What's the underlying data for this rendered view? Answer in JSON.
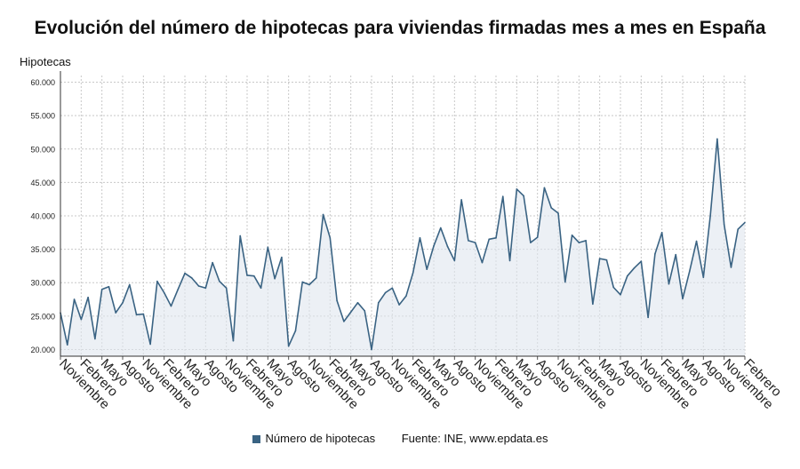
{
  "chart_data": {
    "type": "area",
    "title": "Evolución del número de hipotecas para viviendas firmadas mes a mes en España",
    "ylabel": "Hipotecas",
    "ylim": [
      19000,
      61000
    ],
    "yticks": [
      20000,
      25000,
      30000,
      35000,
      40000,
      45000,
      50000,
      55000,
      60000
    ],
    "ytick_labels": [
      "20.000",
      "25.000",
      "30.000",
      "35.000",
      "40.000",
      "45.000",
      "50.000",
      "55.000",
      "60.000"
    ],
    "x_tick_labels": [
      "Noviembre",
      "Febrero",
      "Mayo",
      "Agosto",
      "Noviembre",
      "Febrero",
      "Mayo",
      "Agosto",
      "Noviembre",
      "Febrero",
      "Mayo",
      "Agosto",
      "Noviembre",
      "Febrero",
      "Mayo",
      "Agosto",
      "Noviembre",
      "Febrero",
      "Mayo",
      "Agosto",
      "Noviembre",
      "Febrero",
      "Mayo",
      "Agosto",
      "Noviembre",
      "Febrero",
      "Mayo",
      "Agosto",
      "Noviembre",
      "Febrero",
      "Mayo",
      "Agosto",
      "Noviembre",
      "Febrero"
    ],
    "x_tick_every_months": 3,
    "grid": true,
    "legend_position": "bottom",
    "series": [
      {
        "name": "Número de hipotecas",
        "color": "#3a6383",
        "values": [
          25500,
          20700,
          27500,
          24500,
          27800,
          21600,
          29000,
          29400,
          25500,
          27000,
          29700,
          25200,
          25300,
          20800,
          30200,
          28500,
          26500,
          29000,
          31400,
          30700,
          29500,
          29200,
          33000,
          30200,
          29200,
          21300,
          37000,
          31100,
          31000,
          29200,
          35300,
          30600,
          33800,
          20500,
          22800,
          30100,
          29700,
          30700,
          40200,
          36700,
          27300,
          24200,
          25600,
          27000,
          25800,
          20000,
          27000,
          28500,
          29200,
          26700,
          28000,
          31500,
          36700,
          32000,
          35500,
          38200,
          35400,
          33300,
          42400,
          36300,
          36000,
          33000,
          36500,
          36700,
          42900,
          33300,
          44000,
          43000,
          36000,
          36800,
          44200,
          41200,
          40400,
          30100,
          37100,
          36000,
          36300,
          26800,
          33600,
          33400,
          29300,
          28200,
          31000,
          32200,
          33200,
          24800,
          34300,
          37500,
          29800,
          34200,
          27600,
          31700,
          36200,
          30800,
          40000,
          51500,
          38700,
          32300,
          38000,
          39000
        ]
      }
    ]
  },
  "legend": {
    "series_label": "Número de hipotecas",
    "source": "Fuente: INE, www.epdata.es"
  }
}
